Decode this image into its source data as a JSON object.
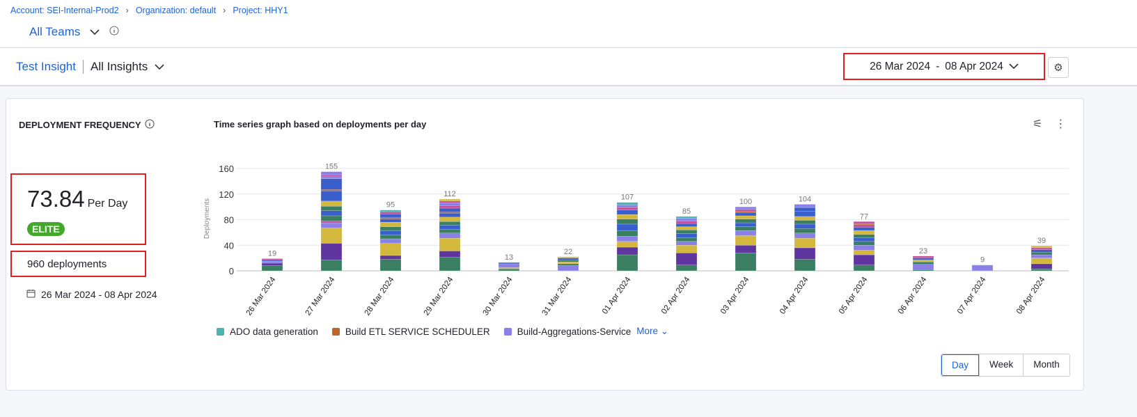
{
  "breadcrumbs": [
    "Account: SEI-Internal-Prod2",
    "Organization: default",
    "Project: HHY1"
  ],
  "team_selector": "All Teams",
  "insight": {
    "category": "Test Insight",
    "selector": "All Insights"
  },
  "date_range": {
    "start": "26 Mar 2024",
    "sep": "-",
    "end": "08 Apr 2024"
  },
  "widget": {
    "title": "DEPLOYMENT FREQUENCY",
    "value": "73.84",
    "unit": "Per Day",
    "badge": "ELITE",
    "deployments": "960 deployments",
    "range": "26 Mar 2024 - 08 Apr 2024",
    "chart_title": "Time series graph based on deployments per day",
    "legend": [
      {
        "name": "ADO data generation",
        "color": "#4bb4b4"
      },
      {
        "name": "Build ETL SERVICE SCHEDULER",
        "color": "#c0652a"
      },
      {
        "name": "Build-Aggregations-Service",
        "color": "#8b80e8"
      }
    ],
    "more": "More",
    "granularity": [
      "Day",
      "Week",
      "Month"
    ],
    "selected_granularity": "Day"
  },
  "colors": {
    "g": "#3b7f63",
    "p": "#5f36a0",
    "y": "#d4b83e",
    "l": "#8b80e8",
    "b": "#3a5fcd",
    "o": "#c0652a",
    "k": "#c24f9a",
    "t": "#4bb4b4"
  },
  "chart_data": {
    "type": "bar",
    "stacked": true,
    "ylabel": "Deployments",
    "ylim": [
      0,
      160
    ],
    "yticks": [
      0,
      40,
      80,
      120,
      160
    ],
    "grid": true,
    "categories": [
      "26 Mar 2024",
      "27 Mar 2024",
      "28 Mar 2024",
      "29 Mar 2024",
      "30 Mar 2024",
      "31 Mar 2024",
      "01 Apr 2024",
      "02 Apr 2024",
      "03 Apr 2024",
      "04 Apr 2024",
      "05 Apr 2024",
      "06 Apr 2024",
      "07 Apr 2024",
      "08 Apr 2024"
    ],
    "totals": [
      19,
      155,
      95,
      112,
      13,
      22,
      107,
      85,
      100,
      104,
      77,
      23,
      9,
      39
    ],
    "stacks": [
      [
        [
          8,
          "g"
        ],
        [
          4,
          "p"
        ],
        [
          3,
          "l"
        ],
        [
          2,
          "b"
        ],
        [
          2,
          "k"
        ]
      ],
      [
        [
          17,
          "g"
        ],
        [
          26,
          "p"
        ],
        [
          24,
          "y"
        ],
        [
          8,
          "l"
        ],
        [
          3,
          "k"
        ],
        [
          8,
          "g"
        ],
        [
          8,
          "b"
        ],
        [
          7,
          "g"
        ],
        [
          8,
          "y"
        ],
        [
          16,
          "b"
        ],
        [
          2,
          "o"
        ],
        [
          17,
          "b"
        ],
        [
          3,
          "l"
        ],
        [
          3,
          "k"
        ],
        [
          5,
          "l"
        ]
      ],
      [
        [
          18,
          "g"
        ],
        [
          6,
          "p"
        ],
        [
          19,
          "y"
        ],
        [
          7,
          "l"
        ],
        [
          6,
          "g"
        ],
        [
          7,
          "b"
        ],
        [
          6,
          "g"
        ],
        [
          7,
          "y"
        ],
        [
          5,
          "b"
        ],
        [
          2,
          "o"
        ],
        [
          6,
          "b"
        ],
        [
          3,
          "k"
        ],
        [
          3,
          "t"
        ]
      ],
      [
        [
          21,
          "g"
        ],
        [
          10,
          "p"
        ],
        [
          20,
          "y"
        ],
        [
          8,
          "l"
        ],
        [
          6,
          "g"
        ],
        [
          6,
          "b"
        ],
        [
          6,
          "g"
        ],
        [
          7,
          "y"
        ],
        [
          6,
          "b"
        ],
        [
          2,
          "o"
        ],
        [
          6,
          "b"
        ],
        [
          4,
          "k"
        ],
        [
          4,
          "l"
        ],
        [
          3,
          "k"
        ],
        [
          3,
          "y"
        ]
      ],
      [
        [
          3,
          "g"
        ],
        [
          2,
          "y"
        ],
        [
          6,
          "l"
        ],
        [
          2,
          "b"
        ]
      ],
      [
        [
          8,
          "l"
        ],
        [
          3,
          "g"
        ],
        [
          3,
          "y"
        ],
        [
          3,
          "g"
        ],
        [
          3,
          "b"
        ],
        [
          2,
          "y"
        ]
      ],
      [
        [
          25,
          "g"
        ],
        [
          12,
          "p"
        ],
        [
          9,
          "y"
        ],
        [
          8,
          "l"
        ],
        [
          9,
          "g"
        ],
        [
          10,
          "b"
        ],
        [
          8,
          "g"
        ],
        [
          7,
          "y"
        ],
        [
          7,
          "b"
        ],
        [
          4,
          "k"
        ],
        [
          4,
          "l"
        ],
        [
          4,
          "t"
        ]
      ],
      [
        [
          9,
          "g"
        ],
        [
          19,
          "p"
        ],
        [
          12,
          "y"
        ],
        [
          6,
          "l"
        ],
        [
          6,
          "g"
        ],
        [
          6,
          "b"
        ],
        [
          6,
          "g"
        ],
        [
          5,
          "y"
        ],
        [
          5,
          "b"
        ],
        [
          4,
          "k"
        ],
        [
          4,
          "l"
        ],
        [
          3,
          "t"
        ]
      ],
      [
        [
          28,
          "g"
        ],
        [
          12,
          "p"
        ],
        [
          15,
          "y"
        ],
        [
          8,
          "l"
        ],
        [
          6,
          "g"
        ],
        [
          6,
          "b"
        ],
        [
          6,
          "g"
        ],
        [
          5,
          "y"
        ],
        [
          5,
          "b"
        ],
        [
          2,
          "o"
        ],
        [
          3,
          "k"
        ],
        [
          4,
          "l"
        ]
      ],
      [
        [
          18,
          "g"
        ],
        [
          18,
          "p"
        ],
        [
          15,
          "y"
        ],
        [
          8,
          "l"
        ],
        [
          7,
          "g"
        ],
        [
          7,
          "b"
        ],
        [
          6,
          "g"
        ],
        [
          6,
          "y"
        ],
        [
          8,
          "b"
        ],
        [
          6,
          "b"
        ],
        [
          5,
          "l"
        ]
      ],
      [
        [
          9,
          "g"
        ],
        [
          16,
          "p"
        ],
        [
          7,
          "y"
        ],
        [
          8,
          "l"
        ],
        [
          6,
          "g"
        ],
        [
          6,
          "b"
        ],
        [
          5,
          "g"
        ],
        [
          6,
          "y"
        ],
        [
          5,
          "b"
        ],
        [
          4,
          "k"
        ],
        [
          2,
          "o"
        ],
        [
          3,
          "k"
        ]
      ],
      [
        [
          2,
          "g"
        ],
        [
          8,
          "l"
        ],
        [
          4,
          "g"
        ],
        [
          3,
          "y"
        ],
        [
          3,
          "b"
        ],
        [
          3,
          "k"
        ]
      ],
      [
        [
          8,
          "l"
        ],
        [
          1,
          "b"
        ]
      ],
      [
        [
          3,
          "g"
        ],
        [
          8,
          "p"
        ],
        [
          9,
          "y"
        ],
        [
          5,
          "l"
        ],
        [
          4,
          "g"
        ],
        [
          4,
          "b"
        ],
        [
          3,
          "k"
        ],
        [
          3,
          "y"
        ]
      ]
    ]
  }
}
